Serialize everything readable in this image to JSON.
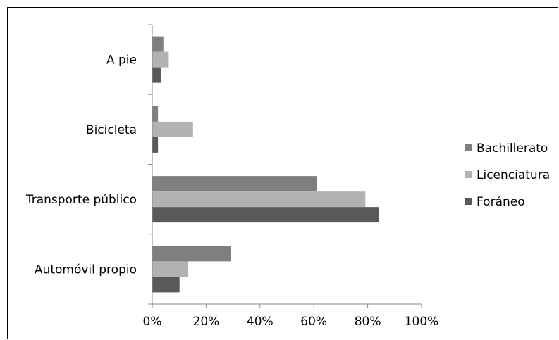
{
  "chart_data": {
    "type": "bar",
    "orientation": "horizontal",
    "categories": [
      "A pie",
      "Bicicleta",
      "Transporte público",
      "Automóvil propio"
    ],
    "series": [
      {
        "name": "Bachillerato",
        "values": [
          4,
          2,
          61,
          29
        ],
        "color": "#7f7f7f"
      },
      {
        "name": "Licenciatura",
        "values": [
          6,
          15,
          79,
          13
        ],
        "color": "#b2b2b2"
      },
      {
        "name": "Foráneo",
        "values": [
          3,
          2,
          84,
          10
        ],
        "color": "#595959"
      }
    ],
    "x_ticks": [
      "0%",
      "20%",
      "40%",
      "60%",
      "80%",
      "100%"
    ],
    "xlim": [
      0,
      100
    ],
    "unit": "%",
    "grid": false,
    "legend_position": "right",
    "title": "",
    "xlabel": "",
    "ylabel": ""
  }
}
